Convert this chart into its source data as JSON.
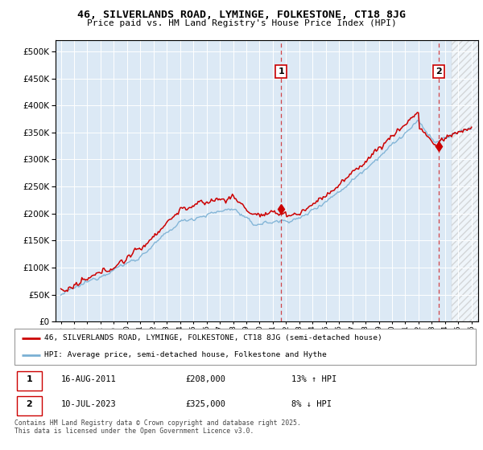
{
  "title": "46, SILVERLANDS ROAD, LYMINGE, FOLKESTONE, CT18 8JG",
  "subtitle": "Price paid vs. HM Land Registry's House Price Index (HPI)",
  "background_color": "#dce9f7",
  "plot_bg_color": "#dce9f5",
  "red_line_color": "#cc0000",
  "blue_line_color": "#7ab0d4",
  "marker1_x": 2011.62,
  "marker2_x": 2023.53,
  "marker1_label": "1",
  "marker2_label": "2",
  "marker1_price": 208000,
  "marker2_price": 325000,
  "ylim": [
    0,
    520000
  ],
  "xlim_start": 1994.6,
  "xlim_end": 2026.5,
  "yticks": [
    0,
    50000,
    100000,
    150000,
    200000,
    250000,
    300000,
    350000,
    400000,
    450000,
    500000
  ],
  "legend_line1": "46, SILVERLANDS ROAD, LYMINGE, FOLKESTONE, CT18 8JG (semi-detached house)",
  "legend_line2": "HPI: Average price, semi-detached house, Folkestone and Hythe",
  "annotation1_date": "16-AUG-2011",
  "annotation1_price": "£208,000",
  "annotation1_hpi": "13% ↑ HPI",
  "annotation2_date": "10-JUL-2023",
  "annotation2_price": "£325,000",
  "annotation2_hpi": "8% ↓ HPI",
  "footer": "Contains HM Land Registry data © Crown copyright and database right 2025.\nThis data is licensed under the Open Government Licence v3.0.",
  "hatch_start": 2024.5
}
